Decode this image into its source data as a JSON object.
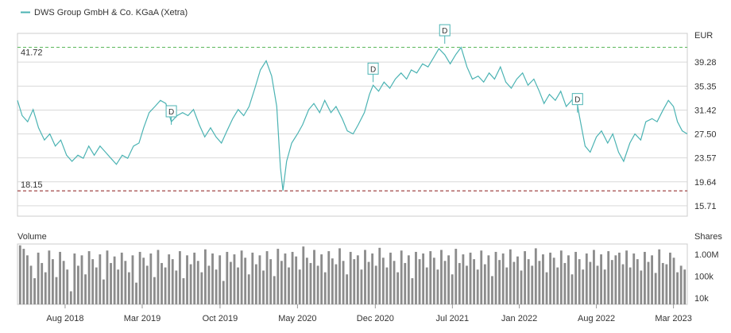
{
  "chart_data": [
    {
      "type": "line",
      "legend": [
        {
          "name": "DWS Group GmbH & Co. KGaA (Xetra)",
          "color": "#4bb3b3"
        }
      ],
      "unit_label": "EUR",
      "y_ticks": [
        "39.28",
        "35.35",
        "31.42",
        "27.50",
        "23.57",
        "19.64",
        "15.71"
      ],
      "ylim": [
        14,
        44
      ],
      "high": {
        "label": "41.72",
        "value": 41.72,
        "color": "#5cb85c"
      },
      "low": {
        "label": "18.15",
        "value": 18.15,
        "color": "#8b1a1a"
      },
      "dividend_marker": "D",
      "dividends": [
        {
          "date": "2019-05-20",
          "value": 29.0
        },
        {
          "date": "2020-11-25",
          "value": 36.0
        },
        {
          "date": "2021-06-10",
          "value": 42.3
        },
        {
          "date": "2022-06-10",
          "value": 31.0
        }
      ],
      "x_ticks": [
        {
          "label": "Aug 2018",
          "date": "2018-08-01"
        },
        {
          "label": "Mar 2019",
          "date": "2019-03-01"
        },
        {
          "label": "Oct 2019",
          "date": "2019-10-01"
        },
        {
          "label": "May 2020",
          "date": "2020-05-01"
        },
        {
          "label": "Dec 2020",
          "date": "2020-12-01"
        },
        {
          "label": "Jul 2021",
          "date": "2021-07-01"
        },
        {
          "label": "Jan 2022",
          "date": "2022-01-01"
        },
        {
          "label": "Aug 2022",
          "date": "2022-08-01"
        },
        {
          "label": "Mar 2023",
          "date": "2023-03-01"
        }
      ],
      "xlim": [
        "2018-03-23",
        "2023-04-08"
      ],
      "series": [
        {
          "color": "#4bb3b3",
          "points": [
            [
              "2018-03-23",
              33.0
            ],
            [
              "2018-04-05",
              30.5
            ],
            [
              "2018-04-20",
              29.5
            ],
            [
              "2018-05-05",
              31.5
            ],
            [
              "2018-05-20",
              28.5
            ],
            [
              "2018-06-05",
              26.5
            ],
            [
              "2018-06-20",
              27.5
            ],
            [
              "2018-07-05",
              25.5
            ],
            [
              "2018-07-20",
              26.5
            ],
            [
              "2018-08-05",
              24.0
            ],
            [
              "2018-08-20",
              23.0
            ],
            [
              "2018-09-05",
              24.0
            ],
            [
              "2018-09-20",
              23.5
            ],
            [
              "2018-10-05",
              25.5
            ],
            [
              "2018-10-20",
              24.0
            ],
            [
              "2018-11-05",
              25.5
            ],
            [
              "2018-11-20",
              24.5
            ],
            [
              "2018-12-05",
              23.5
            ],
            [
              "2018-12-20",
              22.5
            ],
            [
              "2019-01-05",
              24.0
            ],
            [
              "2019-01-20",
              23.5
            ],
            [
              "2019-02-05",
              25.5
            ],
            [
              "2019-02-20",
              26.0
            ],
            [
              "2019-03-05",
              28.5
            ],
            [
              "2019-03-20",
              31.0
            ],
            [
              "2019-04-05",
              32.0
            ],
            [
              "2019-04-20",
              33.0
            ],
            [
              "2019-05-05",
              32.5
            ],
            [
              "2019-05-20",
              29.5
            ],
            [
              "2019-06-05",
              30.5
            ],
            [
              "2019-06-20",
              31.0
            ],
            [
              "2019-07-05",
              30.5
            ],
            [
              "2019-07-20",
              31.5
            ],
            [
              "2019-08-05",
              29.0
            ],
            [
              "2019-08-20",
              27.0
            ],
            [
              "2019-09-05",
              28.5
            ],
            [
              "2019-09-20",
              27.0
            ],
            [
              "2019-10-05",
              26.0
            ],
            [
              "2019-10-20",
              28.0
            ],
            [
              "2019-11-05",
              30.0
            ],
            [
              "2019-11-20",
              31.5
            ],
            [
              "2019-12-05",
              30.5
            ],
            [
              "2019-12-20",
              32.0
            ],
            [
              "2020-01-05",
              35.0
            ],
            [
              "2020-01-20",
              38.0
            ],
            [
              "2020-02-05",
              39.5
            ],
            [
              "2020-02-20",
              37.0
            ],
            [
              "2020-03-05",
              32.0
            ],
            [
              "2020-03-15",
              22.0
            ],
            [
              "2020-03-22",
              18.2
            ],
            [
              "2020-04-01",
              23.0
            ],
            [
              "2020-04-15",
              26.0
            ],
            [
              "2020-05-01",
              27.5
            ],
            [
              "2020-05-15",
              29.0
            ],
            [
              "2020-06-01",
              31.5
            ],
            [
              "2020-06-15",
              32.5
            ],
            [
              "2020-07-01",
              31.0
            ],
            [
              "2020-07-15",
              33.0
            ],
            [
              "2020-08-01",
              31.0
            ],
            [
              "2020-08-15",
              32.0
            ],
            [
              "2020-09-01",
              30.0
            ],
            [
              "2020-09-15",
              28.0
            ],
            [
              "2020-10-01",
              27.5
            ],
            [
              "2020-10-15",
              29.0
            ],
            [
              "2020-11-01",
              31.0
            ],
            [
              "2020-11-15",
              34.0
            ],
            [
              "2020-11-25",
              35.5
            ],
            [
              "2020-12-10",
              34.5
            ],
            [
              "2020-12-25",
              36.0
            ],
            [
              "2021-01-10",
              35.0
            ],
            [
              "2021-01-25",
              36.5
            ],
            [
              "2021-02-10",
              37.5
            ],
            [
              "2021-02-25",
              36.5
            ],
            [
              "2021-03-10",
              38.0
            ],
            [
              "2021-03-25",
              37.5
            ],
            [
              "2021-04-10",
              39.0
            ],
            [
              "2021-04-25",
              38.5
            ],
            [
              "2021-05-10",
              40.0
            ],
            [
              "2021-05-25",
              41.5
            ],
            [
              "2021-06-10",
              40.5
            ],
            [
              "2021-06-25",
              39.0
            ],
            [
              "2021-07-10",
              40.5
            ],
            [
              "2021-07-25",
              41.7
            ],
            [
              "2021-08-10",
              38.5
            ],
            [
              "2021-08-25",
              36.5
            ],
            [
              "2021-09-10",
              37.0
            ],
            [
              "2021-09-25",
              36.0
            ],
            [
              "2021-10-10",
              37.5
            ],
            [
              "2021-10-25",
              36.5
            ],
            [
              "2021-11-10",
              38.5
            ],
            [
              "2021-11-25",
              36.0
            ],
            [
              "2021-12-10",
              35.0
            ],
            [
              "2021-12-25",
              36.5
            ],
            [
              "2022-01-10",
              37.5
            ],
            [
              "2022-01-25",
              35.5
            ],
            [
              "2022-02-10",
              36.5
            ],
            [
              "2022-02-25",
              34.5
            ],
            [
              "2022-03-10",
              32.5
            ],
            [
              "2022-03-25",
              34.0
            ],
            [
              "2022-04-10",
              33.0
            ],
            [
              "2022-04-25",
              34.5
            ],
            [
              "2022-05-10",
              32.0
            ],
            [
              "2022-05-25",
              33.0
            ],
            [
              "2022-06-05",
              34.0
            ],
            [
              "2022-06-15",
              30.5
            ],
            [
              "2022-07-01",
              25.5
            ],
            [
              "2022-07-15",
              24.5
            ],
            [
              "2022-08-01",
              27.0
            ],
            [
              "2022-08-15",
              28.0
            ],
            [
              "2022-09-01",
              26.0
            ],
            [
              "2022-09-15",
              27.5
            ],
            [
              "2022-10-01",
              24.5
            ],
            [
              "2022-10-15",
              23.0
            ],
            [
              "2022-11-01",
              26.0
            ],
            [
              "2022-11-15",
              27.5
            ],
            [
              "2022-12-01",
              26.5
            ],
            [
              "2022-12-15",
              29.5
            ],
            [
              "2023-01-01",
              30.0
            ],
            [
              "2023-01-15",
              29.5
            ],
            [
              "2023-02-01",
              31.5
            ],
            [
              "2023-02-15",
              33.0
            ],
            [
              "2023-03-01",
              32.0
            ],
            [
              "2023-03-12",
              29.5
            ],
            [
              "2023-03-25",
              28.0
            ],
            [
              "2023-04-08",
              27.5
            ]
          ]
        }
      ]
    },
    {
      "type": "bar",
      "title": "Volume",
      "unit_label": "Shares",
      "y_scale": "log",
      "y_ticks": [
        {
          "label": "1.00M",
          "value": 1000000
        },
        {
          "label": "100k",
          "value": 100000
        },
        {
          "label": "10k",
          "value": 10000
        }
      ],
      "ylim": [
        5000,
        3000000
      ],
      "bar_color": "#8c8c8c",
      "volumes": [
        2600000,
        1800000,
        900000,
        300000,
        80000,
        1200000,
        400000,
        150000,
        1500000,
        600000,
        90000,
        1300000,
        500000,
        200000,
        20000,
        1100000,
        300000,
        900000,
        120000,
        1400000,
        600000,
        250000,
        1000000,
        70000,
        1500000,
        400000,
        800000,
        200000,
        1200000,
        500000,
        150000,
        900000,
        50000,
        1300000,
        700000,
        300000,
        1100000,
        90000,
        1600000,
        400000,
        250000,
        1000000,
        600000,
        180000,
        1400000,
        80000,
        900000,
        350000,
        1200000,
        500000,
        150000,
        1700000,
        300000,
        1100000,
        200000,
        900000,
        60000,
        1300000,
        450000,
        1000000,
        250000,
        1500000,
        700000,
        120000,
        1200000,
        350000,
        900000,
        180000,
        1400000,
        600000,
        100000,
        1800000,
        500000,
        1100000,
        250000,
        1300000,
        800000,
        200000,
        2300000,
        700000,
        400000,
        1600000,
        300000,
        1000000,
        150000,
        1400000,
        650000,
        350000,
        1900000,
        500000,
        120000,
        1300000,
        600000,
        900000,
        200000,
        1600000,
        450000,
        1100000,
        300000,
        2000000,
        700000,
        250000,
        1200000,
        500000,
        150000,
        1500000,
        400000,
        900000,
        80000,
        1300000,
        600000,
        1100000,
        250000,
        1400000,
        700000,
        200000,
        1600000,
        500000,
        900000,
        120000,
        1800000,
        400000,
        1000000,
        300000,
        1200000,
        600000,
        200000,
        1500000,
        350000,
        900000,
        100000,
        1300000,
        550000,
        1100000,
        250000,
        1700000,
        450000,
        800000,
        180000,
        1400000,
        600000,
        300000,
        1900000,
        500000,
        1000000,
        150000,
        1200000,
        700000,
        250000,
        1500000,
        400000,
        900000,
        120000,
        1300000,
        600000,
        200000,
        1100000,
        450000,
        1600000,
        300000,
        1000000,
        200000,
        1400000,
        550000,
        900000,
        1200000,
        350000,
        1500000,
        250000,
        1100000,
        600000,
        180000,
        1300000,
        450000,
        900000,
        140000,
        1700000,
        400000,
        350000,
        1200000,
        700000,
        150000,
        300000,
        200000
      ]
    }
  ]
}
